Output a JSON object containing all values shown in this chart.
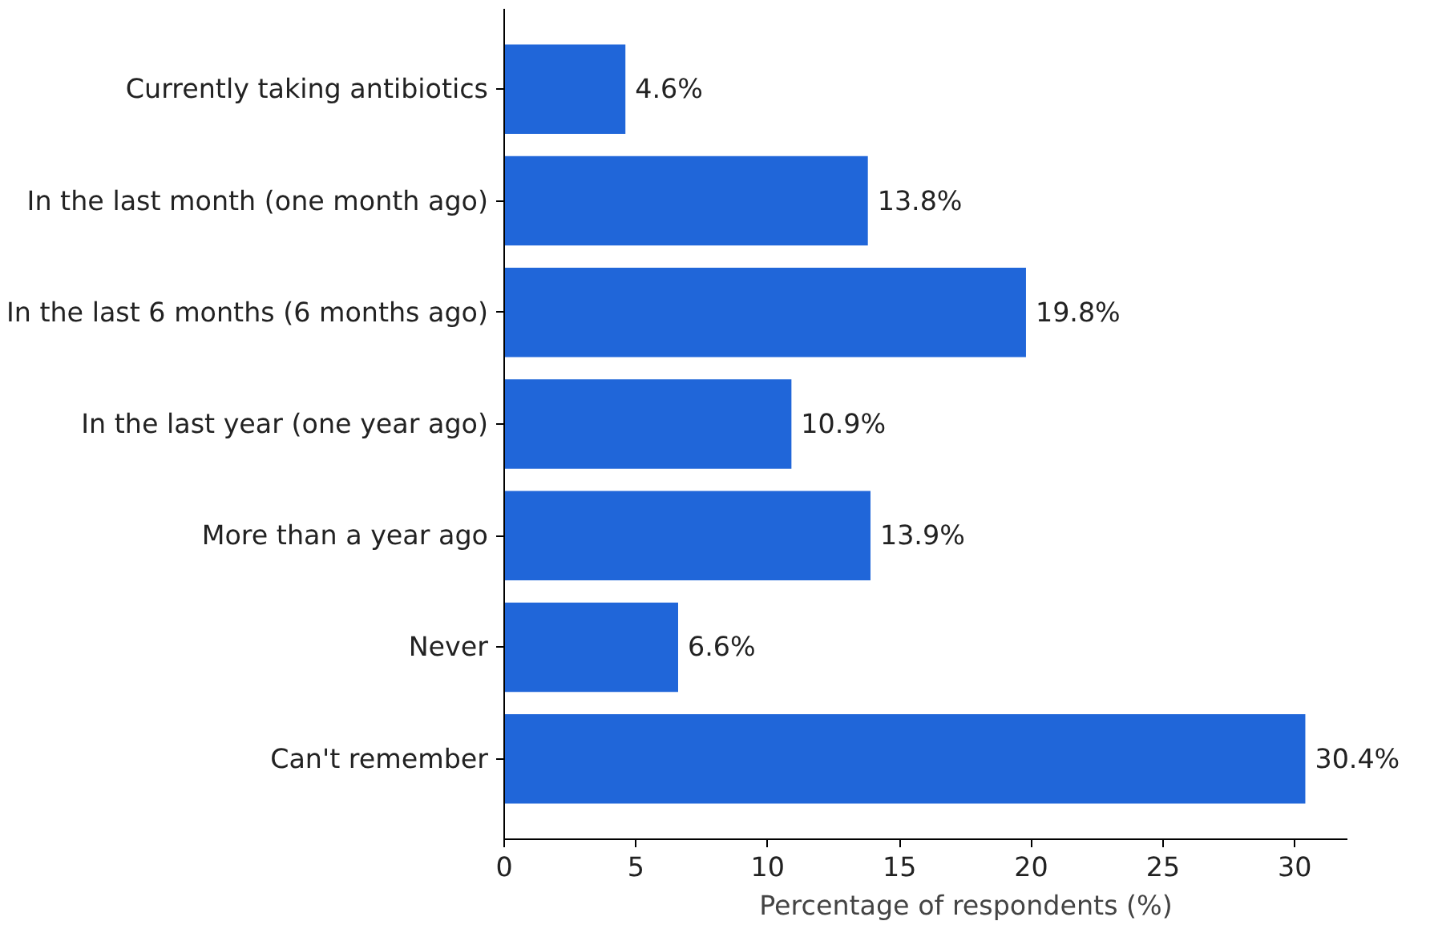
{
  "chart_data": {
    "type": "bar",
    "orientation": "horizontal",
    "xlabel": "Percentage of respondents (%)",
    "categories": [
      "Currently taking antibiotics",
      "In the last month (one month ago)",
      "In the last 6 months (6 months ago)",
      "In the last year (one year ago)",
      "More than a year ago",
      "Never",
      "Can't remember"
    ],
    "values": [
      4.6,
      13.8,
      19.8,
      10.9,
      13.9,
      6.6,
      30.4
    ],
    "value_labels": [
      "4.6%",
      "13.8%",
      "19.8%",
      "10.9%",
      "13.9%",
      "6.6%",
      "30.4%"
    ],
    "color": "#2066d9",
    "xlim": [
      0,
      32
    ],
    "xticks": [
      0,
      5,
      10,
      15,
      20,
      25,
      30
    ],
    "grid": false
  }
}
